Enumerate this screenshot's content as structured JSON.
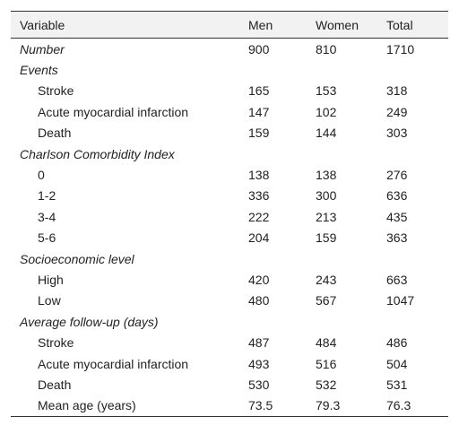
{
  "table": {
    "header": [
      "Variable",
      "Men",
      "Women",
      "Total"
    ],
    "groups": [
      {
        "label": "Number",
        "values": [
          900,
          810,
          1710
        ]
      },
      {
        "label": "Events",
        "rows": [
          {
            "label": "Stroke",
            "values": [
              165,
              153,
              318
            ]
          },
          {
            "label": "Acute myocardial infarction",
            "values": [
              147,
              102,
              249
            ]
          },
          {
            "label": "Death",
            "values": [
              159,
              144,
              303
            ]
          }
        ]
      },
      {
        "label": "Charlson Comorbidity Index",
        "rows": [
          {
            "label": "0",
            "values": [
              138,
              138,
              276
            ]
          },
          {
            "label": "1-2",
            "values": [
              336,
              300,
              636
            ]
          },
          {
            "label": "3-4",
            "values": [
              222,
              213,
              435
            ]
          },
          {
            "label": "5-6",
            "values": [
              204,
              159,
              363
            ]
          }
        ]
      },
      {
        "label": "Socioeconomic level",
        "rows": [
          {
            "label": "High",
            "values": [
              420,
              243,
              663
            ]
          },
          {
            "label": "Low",
            "values": [
              480,
              567,
              1047
            ]
          }
        ]
      },
      {
        "label": "Average follow-up (days)",
        "rows": [
          {
            "label": "Stroke",
            "values": [
              487,
              484,
              486
            ]
          },
          {
            "label": "Acute myocardial infarction",
            "values": [
              493,
              516,
              504
            ]
          },
          {
            "label": "Death",
            "values": [
              530,
              532,
              531
            ]
          },
          {
            "label": "Mean age (years)",
            "values": [
              73.5,
              79.3,
              76.3
            ]
          }
        ]
      }
    ]
  }
}
